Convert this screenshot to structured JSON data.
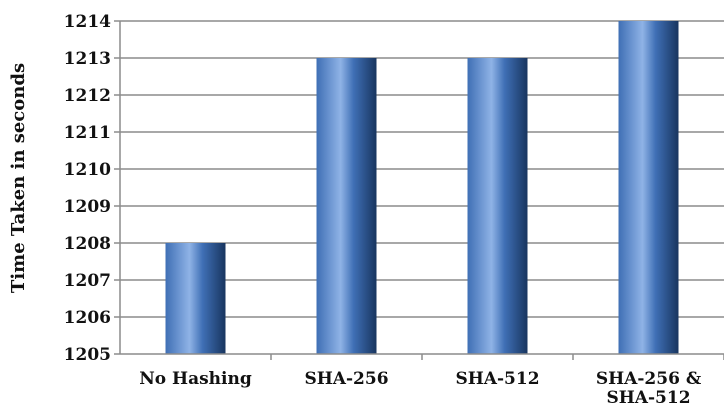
{
  "chart_data": {
    "type": "bar",
    "categories": [
      "No Hashing",
      "SHA-256",
      "SHA-512",
      "SHA-256 & SHA-512"
    ],
    "category_lines": [
      [
        "No Hashing"
      ],
      [
        "SHA-256"
      ],
      [
        "SHA-512"
      ],
      [
        "SHA-256 &",
        "SHA-512"
      ]
    ],
    "values": [
      1208,
      1213,
      1213,
      1214
    ],
    "title": "",
    "xlabel": "",
    "ylabel": "Time Taken in seconds",
    "ylim": [
      1205,
      1214
    ],
    "yticks": [
      1205,
      1206,
      1207,
      1208,
      1209,
      1210,
      1211,
      1212,
      1213,
      1214
    ],
    "grid": true,
    "legend": "none",
    "bar_color_light": "#8fb3e6",
    "bar_color_mid": "#3f6fb5",
    "bar_color_dark": "#18355f"
  }
}
